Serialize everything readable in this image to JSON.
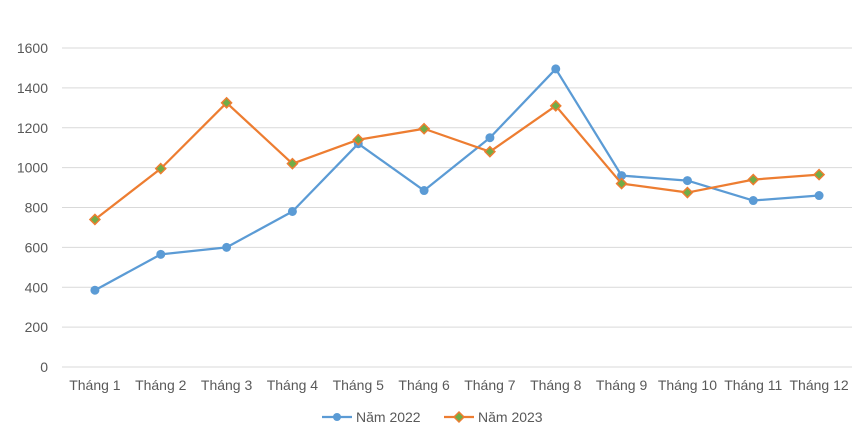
{
  "chart_data": {
    "type": "line",
    "title": "",
    "xlabel": "",
    "ylabel": "",
    "categories": [
      "Tháng 1",
      "Tháng 2",
      "Tháng 3",
      "Tháng 4",
      "Tháng 5",
      "Tháng 6",
      "Tháng 7",
      "Tháng 8",
      "Tháng 9",
      "Tháng 10",
      "Tháng 11",
      "Tháng 12"
    ],
    "ylim": [
      0,
      1600
    ],
    "yticks": [
      0,
      200,
      400,
      600,
      800,
      1000,
      1200,
      1400,
      1600
    ],
    "grid": true,
    "legend_position": "bottom",
    "series": [
      {
        "name": "Năm 2022",
        "color": "#5b9bd5",
        "marker": "circle",
        "values": [
          385,
          565,
          600,
          780,
          1120,
          885,
          1150,
          1495,
          960,
          935,
          835,
          860
        ]
      },
      {
        "name": "Năm 2023",
        "color": "#ed7d31",
        "marker_fill": "#70ad47",
        "marker": "diamond",
        "values": [
          740,
          995,
          1325,
          1020,
          1140,
          1195,
          1080,
          1310,
          920,
          875,
          940,
          965
        ]
      }
    ]
  }
}
